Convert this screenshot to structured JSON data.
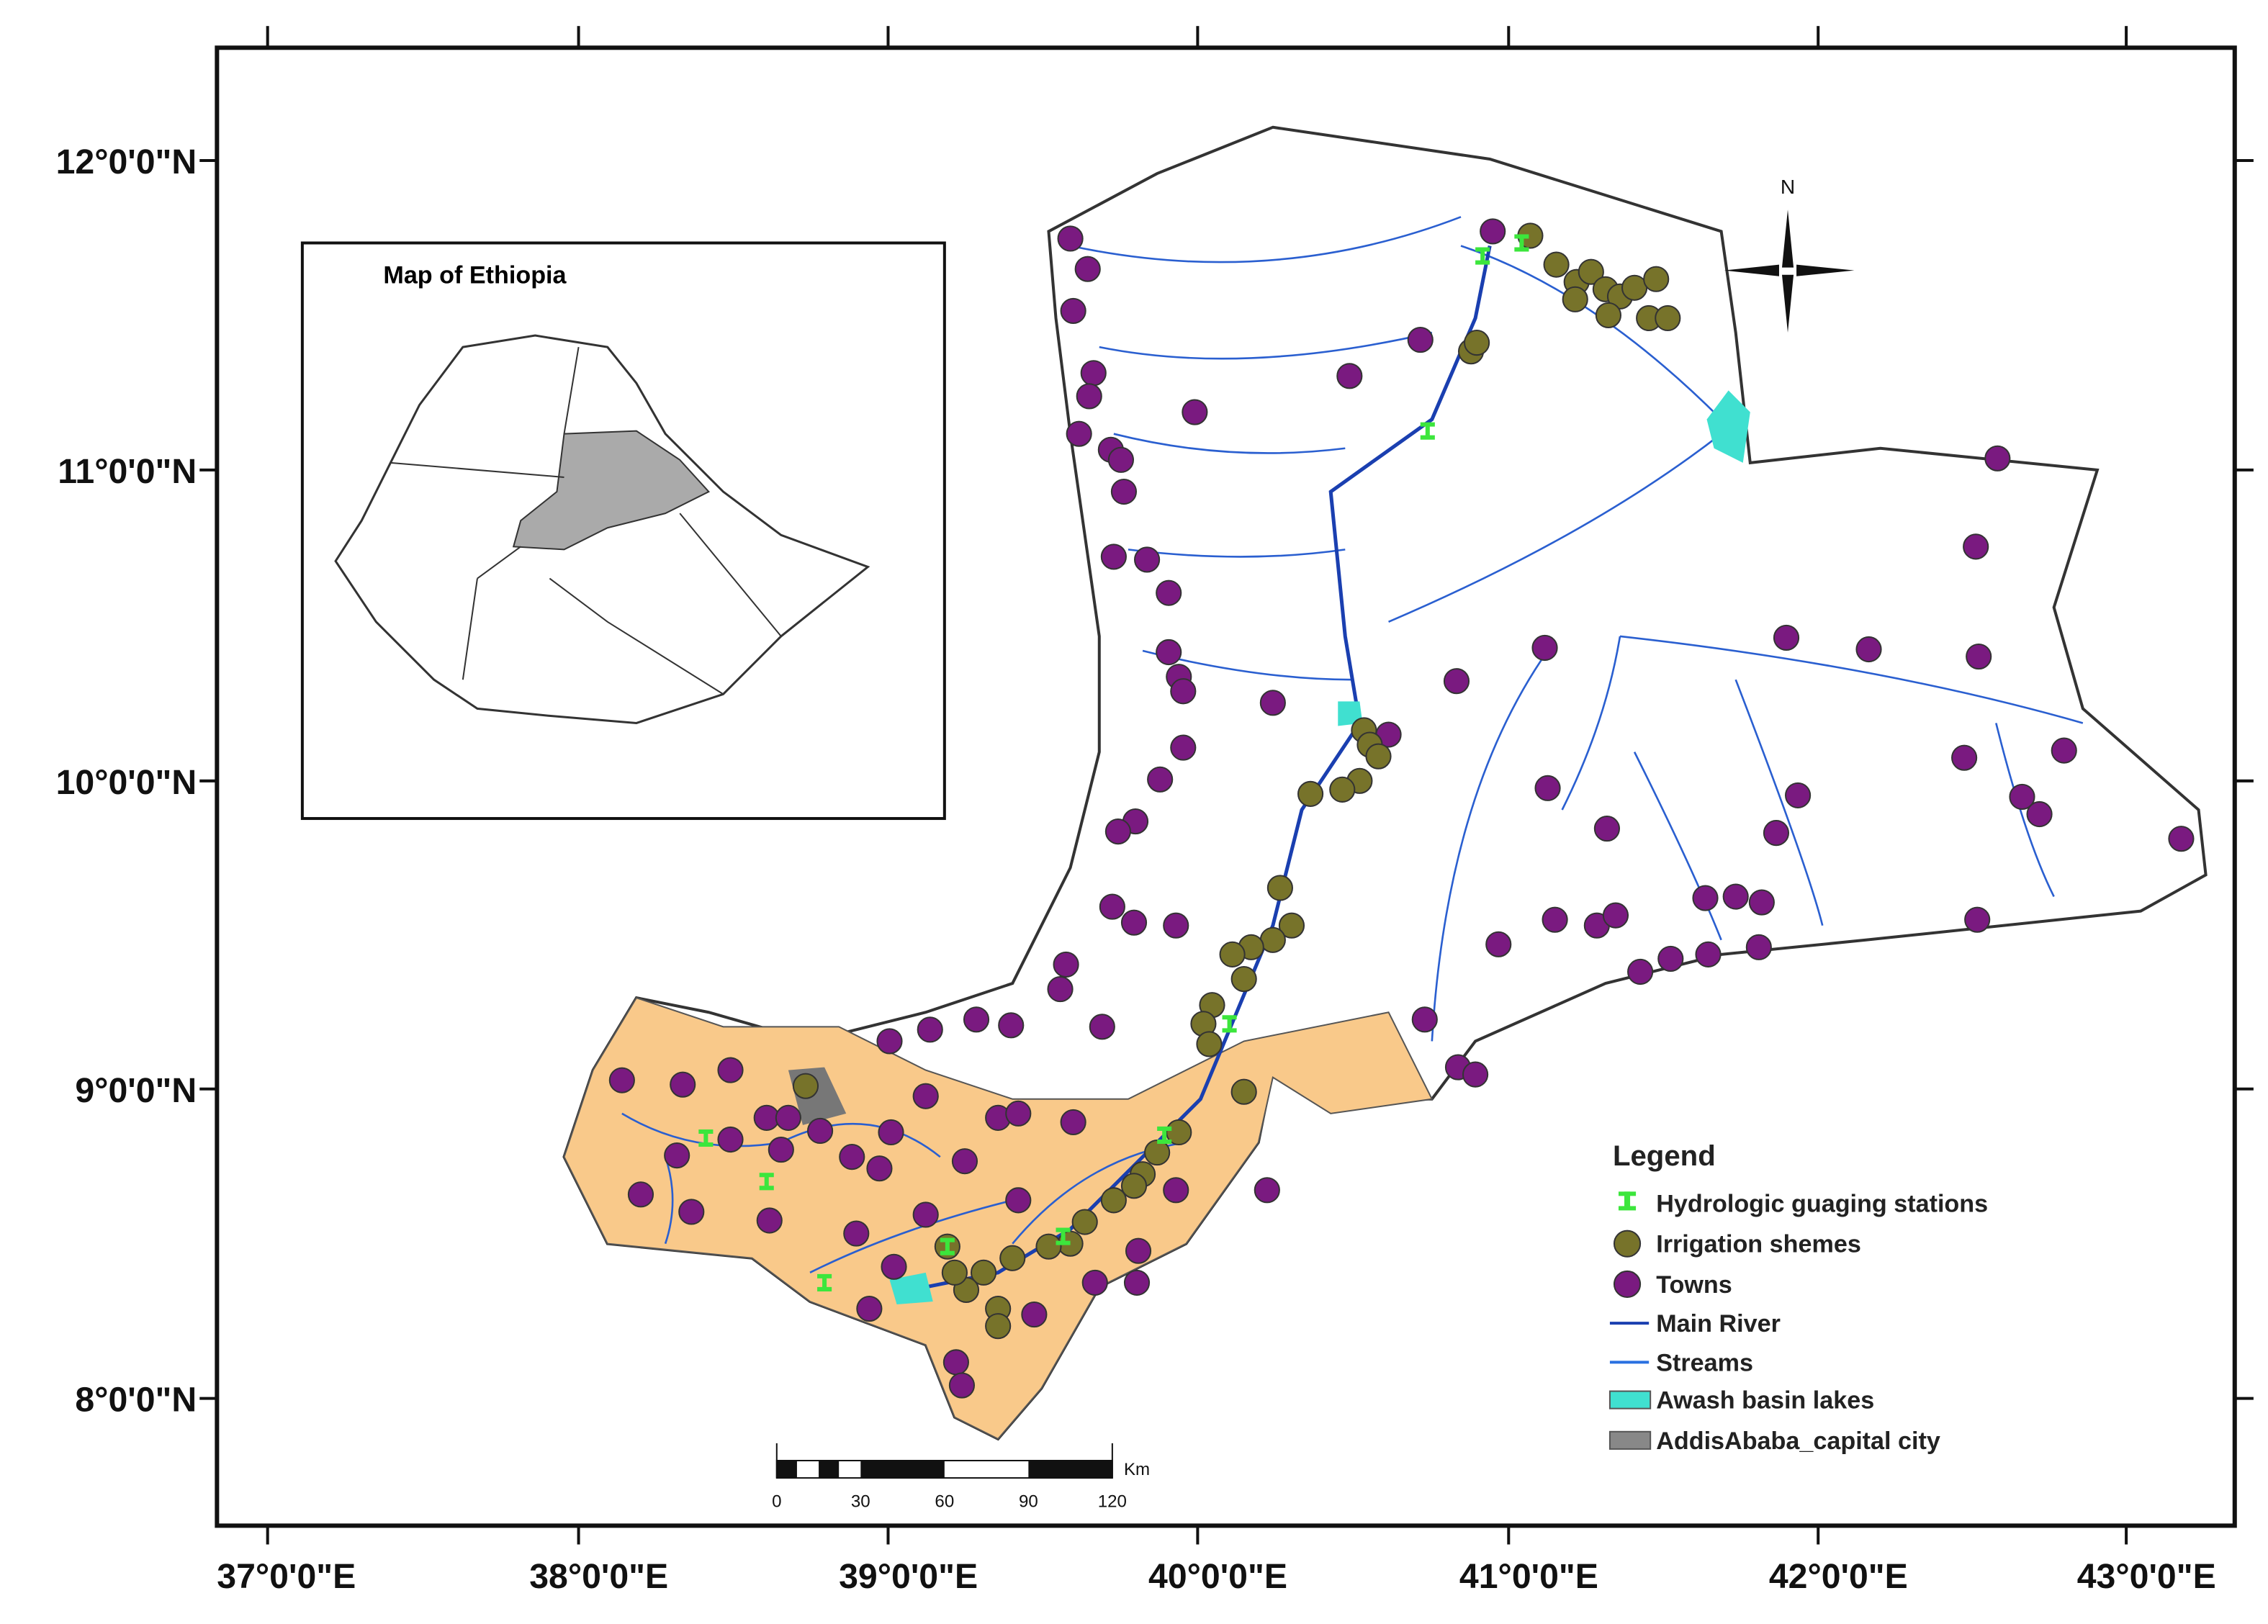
{
  "map": {
    "lat_labels": [
      "12°0'0\"N",
      "11°0'0\"N",
      "10°0'0\"N",
      "9°0'0\"N",
      "8°0'0\"N"
    ],
    "lon_labels": [
      "37°0'0\"E",
      "38°0'0\"E",
      "39°0'0\"E",
      "40°0'0\"E",
      "41°0'0\"E",
      "42°0'0\"E",
      "43°0'0\"E"
    ],
    "inset_title": "Map of Ethiopia",
    "north": "N",
    "scale": {
      "unit": "Km",
      "labels": [
        "0",
        "30",
        "60",
        "90",
        "120"
      ]
    },
    "legend": {
      "title": "Legend",
      "items": [
        "Hydrologic guaging stations",
        "Irrigation shemes",
        "Towns",
        "Main River",
        "Streams",
        "Awash basin lakes",
        "AddisAbaba_capital city"
      ]
    }
  }
}
